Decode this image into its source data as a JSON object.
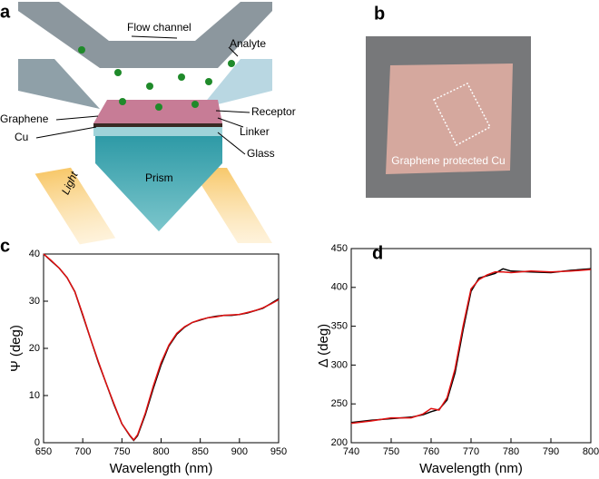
{
  "panel_labels": [
    "a",
    "b",
    "c",
    "d"
  ],
  "diagram": {
    "flow_channel": "Flow channel",
    "analyte": "Analyte",
    "graphene": "Graphene",
    "cu": "Cu",
    "receptor": "Receptor",
    "linker": "Linker",
    "glass": "Glass",
    "prism": "Prism",
    "light": "Light"
  },
  "photo": {
    "caption": "Graphene protected Cu"
  },
  "chart_data": [
    {
      "type": "line",
      "xlabel": "Wavelength (nm)",
      "ylabel": "Ψ (deg)",
      "x": [
        650,
        660,
        670,
        680,
        690,
        700,
        710,
        720,
        730,
        740,
        750,
        760,
        765,
        770,
        780,
        790,
        800,
        810,
        820,
        830,
        840,
        850,
        860,
        870,
        880,
        890,
        900,
        910,
        920,
        930,
        940,
        950
      ],
      "series": [
        {
          "color": "#000000",
          "values": [
            40,
            38.5,
            37,
            35,
            32,
            27,
            22,
            17,
            12.5,
            8,
            4,
            1.5,
            0.5,
            1.5,
            6,
            11.5,
            16.5,
            20.5,
            23,
            24.5,
            25.5,
            26,
            26.5,
            26.8,
            27,
            27,
            27.2,
            27.5,
            28,
            28.5,
            29.5,
            30.5
          ]
        },
        {
          "color": "#e01010",
          "values": [
            40,
            38.6,
            37,
            35,
            32,
            27.2,
            22,
            17.2,
            12.5,
            8.2,
            4,
            1.6,
            0.6,
            1.7,
            6.3,
            12,
            17,
            20.7,
            23.2,
            24.6,
            25.5,
            26.1,
            26.5,
            26.7,
            27,
            27.1,
            27.2,
            27.6,
            28,
            28.6,
            29.4,
            30.3
          ]
        }
      ],
      "xlim": [
        650,
        950
      ],
      "xticks": [
        650,
        700,
        750,
        800,
        850,
        900,
        950
      ],
      "ylim": [
        0,
        40
      ],
      "yticks": [
        0,
        10,
        20,
        30,
        40
      ]
    },
    {
      "type": "line",
      "xlabel": "Wavelength (nm)",
      "ylabel": "Δ (deg)",
      "x": [
        740,
        745,
        750,
        755,
        758,
        760,
        762,
        764,
        766,
        768,
        770,
        772,
        774,
        776,
        778,
        780,
        785,
        790,
        795,
        800
      ],
      "series": [
        {
          "color": "#000000",
          "values": [
            226,
            229,
            231,
            233,
            236,
            240,
            243,
            255,
            290,
            345,
            395,
            412,
            415,
            418,
            424,
            421,
            420,
            419,
            422,
            424
          ]
        },
        {
          "color": "#e01010",
          "values": [
            225,
            228,
            232,
            232,
            237,
            244,
            242,
            258,
            295,
            350,
            398,
            410,
            416,
            420,
            420,
            419,
            421,
            420,
            421,
            423
          ]
        }
      ],
      "xlim": [
        740,
        800
      ],
      "xticks": [
        740,
        750,
        760,
        770,
        780,
        790,
        800
      ],
      "ylim": [
        200,
        450
      ],
      "yticks": [
        200,
        250,
        300,
        350,
        400,
        450
      ]
    }
  ]
}
